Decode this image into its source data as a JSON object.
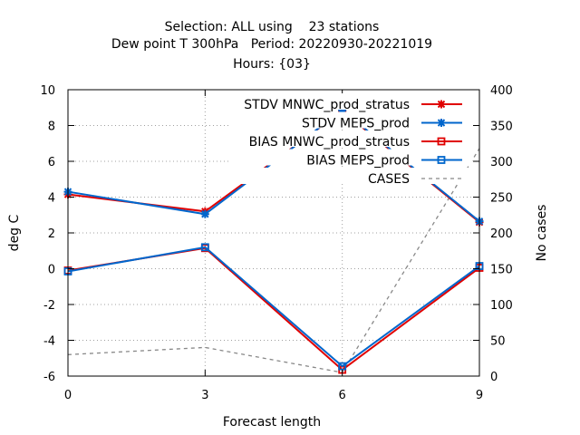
{
  "chart_data": {
    "type": "line",
    "title": [
      "Selection: ALL using    23 stations",
      "Dew point T 300hPa   Period: 20220930-20221019",
      "Hours: {03}"
    ],
    "xlabel": "Forecast length",
    "ylabel": "deg C",
    "y2label": "No cases",
    "x": [
      0,
      3,
      6,
      9
    ],
    "xticks": [
      0,
      3,
      6,
      9
    ],
    "xlim": [
      0,
      9
    ],
    "ylim": [
      -6,
      10
    ],
    "yticks": [
      -6,
      -4,
      -2,
      0,
      2,
      4,
      6,
      8,
      10
    ],
    "y2lim": [
      0,
      400
    ],
    "y2ticks": [
      0,
      50,
      100,
      150,
      200,
      250,
      300,
      350,
      400
    ],
    "grid": true,
    "legend_position": "top-right",
    "series": [
      {
        "name": "STDV MNWC_prod_stratus",
        "axis": "y",
        "values": [
          4.15,
          3.2,
          8.8,
          2.6
        ],
        "color": "#e00000",
        "marker": "x-star",
        "dash": false
      },
      {
        "name": "STDV MEPS_prod",
        "axis": "y",
        "values": [
          4.3,
          3.05,
          8.85,
          2.65
        ],
        "color": "#0066cc",
        "marker": "x-star",
        "dash": false
      },
      {
        "name": "BIAS MNWC_prod_stratus",
        "axis": "y",
        "values": [
          -0.1,
          1.15,
          -5.65,
          0.05
        ],
        "color": "#e00000",
        "marker": "square",
        "dash": false
      },
      {
        "name": "BIAS MEPS_prod",
        "axis": "y",
        "values": [
          -0.15,
          1.2,
          -5.45,
          0.15
        ],
        "color": "#0066cc",
        "marker": "square",
        "dash": false
      },
      {
        "name": "CASES",
        "axis": "y2",
        "values": [
          30,
          40,
          5,
          318
        ],
        "color": "#888888",
        "marker": "none",
        "dash": true
      }
    ]
  }
}
